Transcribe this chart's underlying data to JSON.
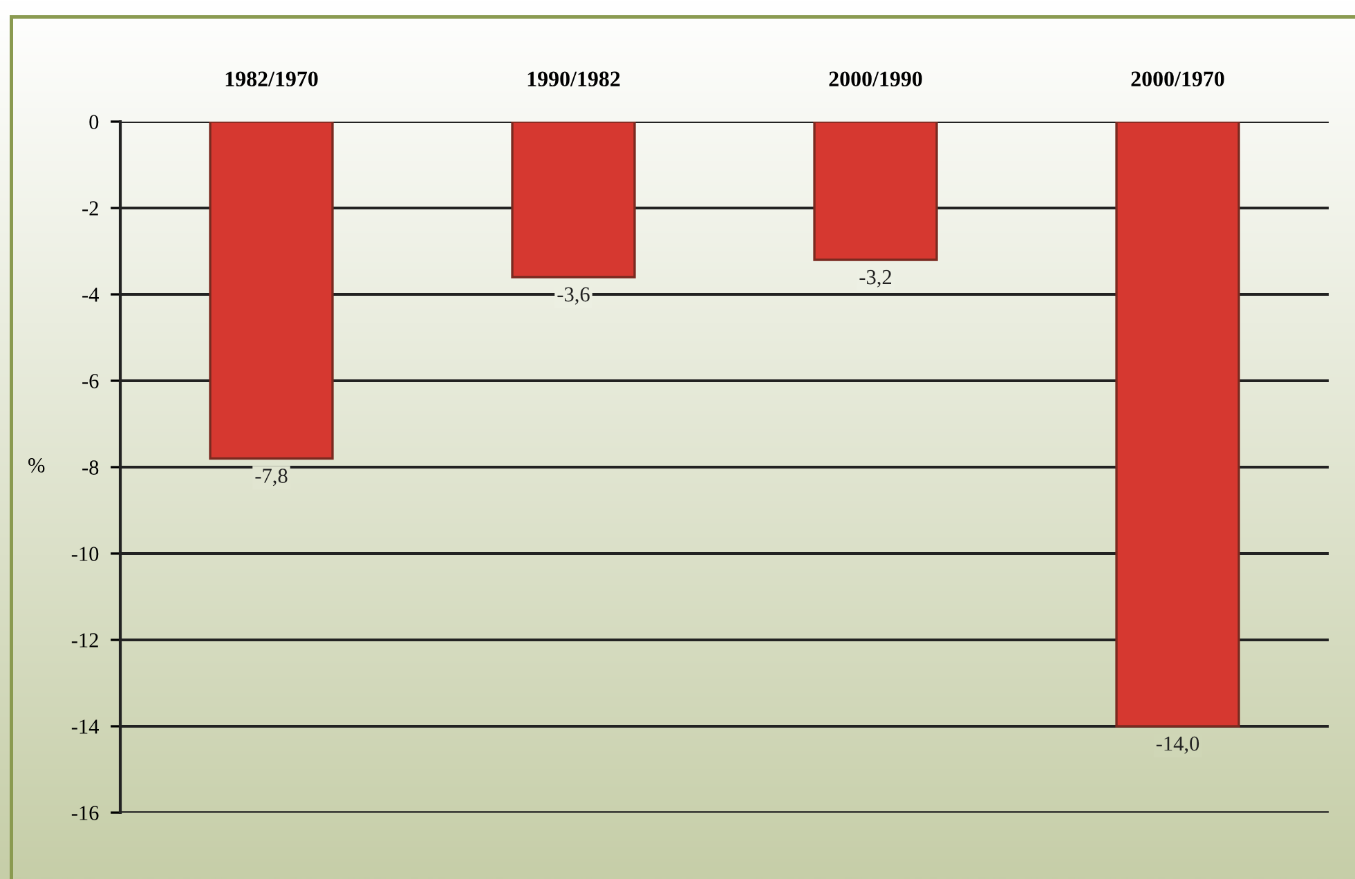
{
  "chart_data": {
    "type": "bar",
    "categories": [
      "1982/1970",
      "1990/1982",
      "2000/1990",
      "2000/1970"
    ],
    "values": [
      -7.8,
      -3.6,
      -3.2,
      -14.0
    ],
    "value_labels": [
      "-7,8",
      "-3,6",
      "-3,2",
      "-14,0"
    ],
    "color": "#d63830",
    "ylabel": "%",
    "ylim": [
      -16,
      0
    ],
    "yticks": [
      0,
      -2,
      -4,
      -6,
      -8,
      -10,
      -12,
      -14,
      -16
    ],
    "grid": "y"
  }
}
